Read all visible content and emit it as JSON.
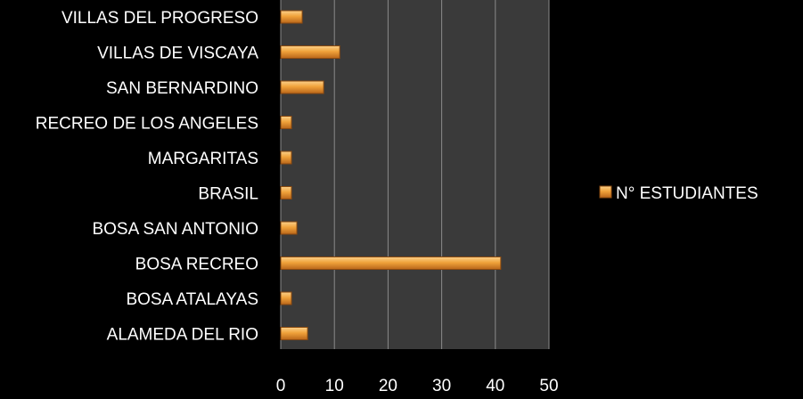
{
  "chart_data": {
    "type": "bar",
    "orientation": "horizontal",
    "title": "",
    "xlabel": "",
    "ylabel": "",
    "categories": [
      "VILLAS DEL PROGRESO",
      "VILLAS DE VISCAYA",
      "SAN BERNARDINO",
      "RECREO DE LOS ANGELES",
      "MARGARITAS",
      "BRASIL",
      "BOSA SAN ANTONIO",
      "BOSA RECREO",
      "BOSA ATALAYAS",
      "ALAMEDA DEL RIO"
    ],
    "series": [
      {
        "name": "N° ESTUDIANTES",
        "values": [
          4,
          11,
          8,
          2,
          2,
          2,
          3,
          41,
          2,
          5
        ]
      }
    ],
    "xlim": [
      0,
      50
    ],
    "xticks": [
      "0",
      "10",
      "20",
      "30",
      "40",
      "50"
    ],
    "grid": true,
    "legend_position": "right",
    "colors": {
      "background": "#000000",
      "plot_area": "#3a3a3a",
      "grid": "#8a8a8a",
      "bar": "#f0a23a",
      "bar_dark": "#b8651a",
      "text": "#ffffff"
    }
  }
}
